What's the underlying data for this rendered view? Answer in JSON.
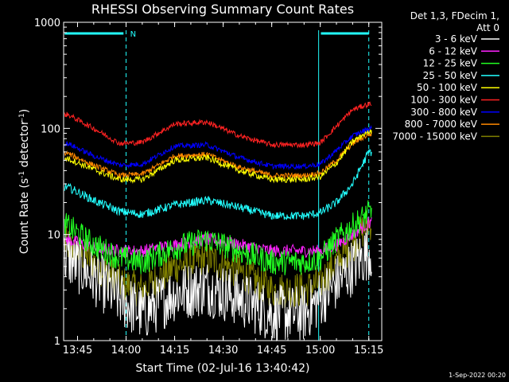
{
  "chart_data": {
    "type": "line",
    "title": "RHESSI Observing Summary Count Rates",
    "xlabel": "Start Time (02-Jul-16 13:40:42)",
    "ylabel_main": "Count Rate (s",
    "ylabel_sup1": "-1",
    "ylabel_mid": " detector",
    "ylabel_sup2": "-1",
    "ylabel_end": ")",
    "y_scale": "log",
    "ylim": [
      1,
      1000
    ],
    "xlim": [
      "13:40:42",
      "15:19:00"
    ],
    "x_ticks": [
      "13:45",
      "14:00",
      "14:15",
      "14:30",
      "14:45",
      "15:00",
      "15:15"
    ],
    "y_ticks": [
      "1",
      "10",
      "100",
      "1000"
    ],
    "grid": false,
    "legend_position": "top-right",
    "legend_header": [
      "Det 1,3, FDecim 1,",
      "Att 0"
    ],
    "top_flag_label": "N",
    "footer_date": "1-Sep-2022 00:20",
    "series": [
      {
        "name": "3 - 6 keV",
        "color": "#ffffff",
        "times": [
          "13:42",
          "13:50",
          "13:58",
          "14:05",
          "14:15",
          "14:25",
          "14:35",
          "14:45",
          "14:55",
          "15:00",
          "15:05",
          "15:10",
          "15:15"
        ],
        "values": [
          6,
          4,
          2.5,
          1.8,
          2.8,
          3.2,
          2.5,
          1.8,
          1.8,
          2.5,
          3.5,
          5,
          7
        ]
      },
      {
        "name": "6 - 12 keV",
        "color": "#ff22ff",
        "times": [
          "13:42",
          "13:50",
          "13:58",
          "14:05",
          "14:15",
          "14:25",
          "14:35",
          "14:45",
          "14:55",
          "15:00",
          "15:05",
          "15:10",
          "15:15"
        ],
        "values": [
          9,
          7.5,
          7,
          7,
          8,
          9,
          8,
          7,
          7,
          7,
          8,
          10,
          13
        ]
      },
      {
        "name": "12 - 25 keV",
        "color": "#22ff22",
        "times": [
          "13:42",
          "13:50",
          "13:58",
          "14:05",
          "14:15",
          "14:25",
          "14:35",
          "14:45",
          "14:55",
          "15:00",
          "15:05",
          "15:10",
          "15:15"
        ],
        "values": [
          12,
          8,
          6,
          5.5,
          7.5,
          9,
          7,
          5.5,
          5.5,
          6,
          9,
          12,
          16
        ]
      },
      {
        "name": "25 - 50 keV",
        "color": "#22ffff",
        "times": [
          "13:42",
          "13:50",
          "13:58",
          "14:05",
          "14:15",
          "14:25",
          "14:35",
          "14:45",
          "14:55",
          "15:00",
          "15:05",
          "15:10",
          "15:15"
        ],
        "values": [
          28,
          21,
          16.5,
          15.5,
          19,
          21,
          18,
          15,
          15,
          16,
          20,
          30,
          60
        ]
      },
      {
        "name": "50 - 100 keV",
        "color": "#ffff00",
        "times": [
          "13:42",
          "13:50",
          "13:58",
          "14:05",
          "14:15",
          "14:25",
          "14:35",
          "14:45",
          "14:55",
          "15:00",
          "15:05",
          "15:10",
          "15:15"
        ],
        "values": [
          52,
          41,
          33,
          33,
          50,
          53,
          40,
          33,
          33,
          35,
          47,
          75,
          95
        ]
      },
      {
        "name": "100 - 300 keV",
        "color": "#ff2222",
        "times": [
          "13:42",
          "13:50",
          "13:58",
          "14:05",
          "14:15",
          "14:25",
          "14:35",
          "14:45",
          "14:55",
          "15:00",
          "15:05",
          "15:10",
          "15:15"
        ],
        "values": [
          135,
          100,
          72,
          74,
          110,
          115,
          85,
          70,
          70,
          73,
          105,
          150,
          170
        ]
      },
      {
        "name": "300 - 800 keV",
        "color": "#0000ff",
        "times": [
          "13:42",
          "13:50",
          "13:58",
          "14:05",
          "14:15",
          "14:25",
          "14:35",
          "14:45",
          "14:55",
          "15:00",
          "15:05",
          "15:10",
          "15:15"
        ],
        "values": [
          72,
          55,
          45,
          46,
          68,
          70,
          53,
          44,
          44,
          46,
          62,
          85,
          100
        ]
      },
      {
        "name": "800 - 7000 keV",
        "color": "#ff8800",
        "times": [
          "13:42",
          "13:50",
          "13:58",
          "14:05",
          "14:15",
          "14:25",
          "14:35",
          "14:45",
          "14:55",
          "15:00",
          "15:05",
          "15:10",
          "15:15"
        ],
        "values": [
          58,
          45,
          36,
          37,
          55,
          57,
          43,
          36,
          36,
          38,
          50,
          72,
          88
        ]
      },
      {
        "name": "7000 - 15000 keV",
        "color": "#808000",
        "times": [
          "13:42",
          "13:50",
          "13:58",
          "14:05",
          "14:15",
          "14:25",
          "14:35",
          "14:45",
          "14:55",
          "15:00",
          "15:05",
          "15:10",
          "15:15"
        ],
        "values": [
          8,
          5.5,
          3.5,
          3,
          5,
          6,
          4.5,
          3,
          3,
          3.5,
          5.5,
          8,
          13
        ]
      }
    ]
  }
}
